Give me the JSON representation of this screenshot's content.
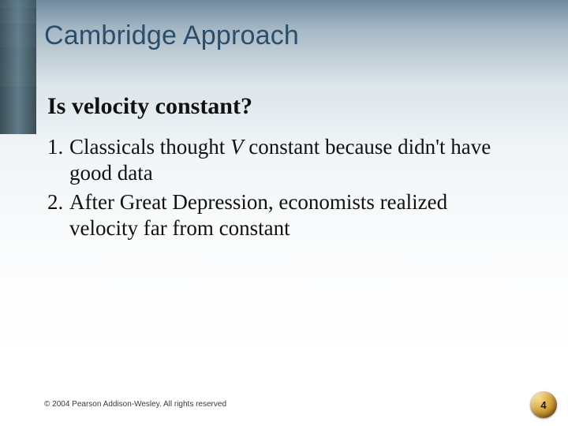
{
  "title": {
    "text": "Cambridge Approach",
    "color": "#2b4e6b",
    "fontsize": 34
  },
  "subhead": {
    "text": "Is velocity constant?",
    "color": "#111111",
    "fontsize": 30
  },
  "list": {
    "fontsize": 27,
    "color": "#111111",
    "items": [
      {
        "num": "1.",
        "pre": "Classicals thought ",
        "italic": "V",
        "post": " constant because didn't have good data"
      },
      {
        "num": "2.",
        "pre": "After Great Depression, economists realized velocity far from constant",
        "italic": "",
        "post": ""
      }
    ]
  },
  "copyright": "© 2004 Pearson Addison-Wesley. All rights reserved",
  "page": {
    "num": "4",
    "color": "#1a1a1a"
  },
  "decor": {
    "bar_gradient_from": "#32464f",
    "bar_gradient_mid": "#587684",
    "bar_gradient_to": "#324650"
  },
  "background": {
    "stops": [
      "#6f8b9f",
      "#a7b9c5",
      "#dce5ea",
      "#f1f5f7",
      "#fbfcfd",
      "#ffffff"
    ]
  }
}
